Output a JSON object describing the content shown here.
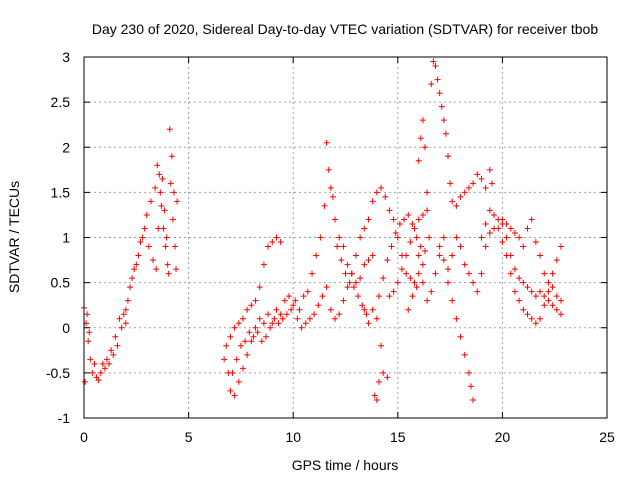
{
  "chart_data": {
    "type": "scatter",
    "title": "Day 230 of 2020, Sidereal Day-to-day VTEC variation (SDTVAR) for receiver tbob",
    "xlabel": "GPS time / hours",
    "ylabel": "SDTVAR / TECUs",
    "xlim": [
      0,
      25
    ],
    "ylim": [
      -1,
      3
    ],
    "xticks": [
      "0",
      "5",
      "10",
      "15",
      "20",
      "25"
    ],
    "yticks": [
      "-1",
      "-0.5",
      "0",
      "0.5",
      "1",
      "1.5",
      "2",
      "2.5",
      "3"
    ],
    "grid": true,
    "marker": "+",
    "color": "#ff0000",
    "series": [
      {
        "name": "SDTVAR",
        "points": [
          [
            0.0,
            0.22
          ],
          [
            0.1,
            0.05
          ],
          [
            0.2,
            -0.15
          ],
          [
            0.3,
            -0.35
          ],
          [
            0.4,
            -0.5
          ],
          [
            0.6,
            -0.55
          ],
          [
            0.8,
            -0.5
          ],
          [
            1.0,
            -0.45
          ],
          [
            1.2,
            -0.4
          ],
          [
            1.4,
            -0.3
          ],
          [
            1.6,
            -0.2
          ],
          [
            1.8,
            0.0
          ],
          [
            2.0,
            0.2
          ],
          [
            2.2,
            0.45
          ],
          [
            2.4,
            0.65
          ],
          [
            2.6,
            0.8
          ],
          [
            2.8,
            1.0
          ],
          [
            3.0,
            1.25
          ],
          [
            3.2,
            1.4
          ],
          [
            3.4,
            1.55
          ],
          [
            3.5,
            1.8
          ],
          [
            3.6,
            1.7
          ],
          [
            3.7,
            1.35
          ],
          [
            3.8,
            1.1
          ],
          [
            3.9,
            0.9
          ],
          [
            4.0,
            0.7
          ],
          [
            4.1,
            2.2
          ],
          [
            4.2,
            1.9
          ],
          [
            4.3,
            1.5
          ],
          [
            4.4,
            0.65
          ],
          [
            0.05,
            -0.6
          ],
          [
            0.15,
            0.15
          ],
          [
            0.25,
            -0.05
          ],
          [
            0.5,
            -0.4
          ],
          [
            0.7,
            -0.58
          ],
          [
            0.9,
            -0.4
          ],
          [
            1.1,
            -0.35
          ],
          [
            1.3,
            -0.25
          ],
          [
            1.5,
            -0.1
          ],
          [
            1.7,
            0.1
          ],
          [
            1.9,
            0.15
          ],
          [
            2.1,
            0.3
          ],
          [
            2.3,
            0.55
          ],
          [
            2.5,
            0.7
          ],
          [
            2.7,
            0.95
          ],
          [
            2.9,
            1.1
          ],
          [
            3.1,
            0.9
          ],
          [
            3.3,
            0.75
          ],
          [
            3.45,
            0.65
          ],
          [
            3.55,
            1.1
          ],
          [
            3.65,
            1.5
          ],
          [
            3.75,
            1.65
          ],
          [
            3.85,
            1.3
          ],
          [
            3.95,
            1.0
          ],
          [
            4.05,
            0.6
          ],
          [
            4.15,
            1.6
          ],
          [
            4.25,
            1.2
          ],
          [
            4.35,
            0.9
          ],
          [
            4.45,
            1.4
          ],
          [
            2.0,
            0.05
          ],
          [
            6.7,
            -0.35
          ],
          [
            6.8,
            -0.2
          ],
          [
            6.9,
            -0.5
          ],
          [
            7.0,
            -0.7
          ],
          [
            7.2,
            -0.75
          ],
          [
            7.4,
            -0.6
          ],
          [
            7.6,
            -0.45
          ],
          [
            7.8,
            -0.3
          ],
          [
            8.0,
            -0.15
          ],
          [
            8.2,
            0.0
          ],
          [
            8.4,
            0.1
          ],
          [
            8.6,
            0.05
          ],
          [
            8.8,
            0.15
          ],
          [
            9.0,
            0.05
          ],
          [
            9.2,
            0.2
          ],
          [
            9.4,
            0.15
          ],
          [
            9.6,
            0.3
          ],
          [
            9.8,
            0.35
          ],
          [
            10.0,
            0.25
          ],
          [
            10.2,
            0.1
          ],
          [
            7.0,
            -0.1
          ],
          [
            7.2,
            0.0
          ],
          [
            7.4,
            0.05
          ],
          [
            7.6,
            0.1
          ],
          [
            7.8,
            0.2
          ],
          [
            8.0,
            0.25
          ],
          [
            8.2,
            0.3
          ],
          [
            8.4,
            0.45
          ],
          [
            8.6,
            0.7
          ],
          [
            8.8,
            0.9
          ],
          [
            9.0,
            0.95
          ],
          [
            9.2,
            1.0
          ],
          [
            9.4,
            0.95
          ],
          [
            7.1,
            -0.5
          ],
          [
            7.3,
            -0.35
          ],
          [
            7.5,
            -0.2
          ],
          [
            7.7,
            -0.15
          ],
          [
            7.9,
            -0.05
          ],
          [
            8.1,
            -0.1
          ],
          [
            8.3,
            -0.05
          ],
          [
            8.5,
            -0.15
          ],
          [
            8.7,
            -0.1
          ],
          [
            8.9,
            0.0
          ],
          [
            9.1,
            0.1
          ],
          [
            9.3,
            0.05
          ],
          [
            9.5,
            0.1
          ],
          [
            9.7,
            0.15
          ],
          [
            9.9,
            0.2
          ],
          [
            10.1,
            0.3
          ],
          [
            10.3,
            0.2
          ],
          [
            10.5,
            0.35
          ],
          [
            10.7,
            0.4
          ],
          [
            10.9,
            0.6
          ],
          [
            11.1,
            0.8
          ],
          [
            11.3,
            1.0
          ],
          [
            11.5,
            1.35
          ],
          [
            11.6,
            2.05
          ],
          [
            11.7,
            1.75
          ],
          [
            11.8,
            1.55
          ],
          [
            11.9,
            1.45
          ],
          [
            12.0,
            1.2
          ],
          [
            12.2,
            1.0
          ],
          [
            12.4,
            0.9
          ],
          [
            12.6,
            0.7
          ],
          [
            12.8,
            0.6
          ],
          [
            13.0,
            0.5
          ],
          [
            13.2,
            0.55
          ],
          [
            13.4,
            0.7
          ],
          [
            13.6,
            0.75
          ],
          [
            13.8,
            0.8
          ],
          [
            10.4,
            0.0
          ],
          [
            10.6,
            0.05
          ],
          [
            10.8,
            0.1
          ],
          [
            11.0,
            0.15
          ],
          [
            11.2,
            0.25
          ],
          [
            11.4,
            0.35
          ],
          [
            11.6,
            0.45
          ],
          [
            11.8,
            0.2
          ],
          [
            12.0,
            0.1
          ],
          [
            12.2,
            0.15
          ],
          [
            12.4,
            0.3
          ],
          [
            12.6,
            0.45
          ],
          [
            12.8,
            0.6
          ],
          [
            13.0,
            0.8
          ],
          [
            13.2,
            1.0
          ],
          [
            13.4,
            1.1
          ],
          [
            13.6,
            1.2
          ],
          [
            13.8,
            1.4
          ],
          [
            14.0,
            1.5
          ],
          [
            14.2,
            1.55
          ],
          [
            14.4,
            1.45
          ],
          [
            14.6,
            1.3
          ],
          [
            14.8,
            1.2
          ],
          [
            15.0,
            1.0
          ],
          [
            15.2,
            0.8
          ],
          [
            15.4,
            0.6
          ],
          [
            15.6,
            0.55
          ],
          [
            15.8,
            0.5
          ],
          [
            16.0,
            0.6
          ],
          [
            16.2,
            0.7
          ],
          [
            13.9,
            -0.75
          ],
          [
            14.0,
            -0.8
          ],
          [
            14.1,
            -0.6
          ],
          [
            14.3,
            -0.5
          ],
          [
            14.5,
            -0.55
          ],
          [
            14.2,
            -0.2
          ],
          [
            14.0,
            0.1
          ],
          [
            13.8,
            0.2
          ],
          [
            13.6,
            0.05
          ],
          [
            13.4,
            0.2
          ],
          [
            14.6,
            0.35
          ],
          [
            14.8,
            0.4
          ],
          [
            15.0,
            0.5
          ],
          [
            15.2,
            0.65
          ],
          [
            15.4,
            0.8
          ],
          [
            15.6,
            0.95
          ],
          [
            15.8,
            1.1
          ],
          [
            16.0,
            1.2
          ],
          [
            16.2,
            1.25
          ],
          [
            16.4,
            1.3
          ],
          [
            16.0,
            1.85
          ],
          [
            16.1,
            2.1
          ],
          [
            16.2,
            2.3
          ],
          [
            16.3,
            2.0
          ],
          [
            16.4,
            1.5
          ],
          [
            16.5,
            1.0
          ],
          [
            16.6,
            2.7
          ],
          [
            16.7,
            2.95
          ],
          [
            16.8,
            2.9
          ],
          [
            16.9,
            2.75
          ],
          [
            17.0,
            2.6
          ],
          [
            17.1,
            2.45
          ],
          [
            17.2,
            2.3
          ],
          [
            17.3,
            2.15
          ],
          [
            17.4,
            1.9
          ],
          [
            17.5,
            1.6
          ],
          [
            17.6,
            1.4
          ],
          [
            17.8,
            1.35
          ],
          [
            18.0,
            1.45
          ],
          [
            18.2,
            1.5
          ],
          [
            18.4,
            1.55
          ],
          [
            18.6,
            1.6
          ],
          [
            18.8,
            1.7
          ],
          [
            19.0,
            1.65
          ],
          [
            19.2,
            1.55
          ],
          [
            19.4,
            1.75
          ],
          [
            19.5,
            1.6
          ],
          [
            16.0,
            0.8
          ],
          [
            16.2,
            0.5
          ],
          [
            16.4,
            0.3
          ],
          [
            16.6,
            0.4
          ],
          [
            16.8,
            0.6
          ],
          [
            17.0,
            0.8
          ],
          [
            17.2,
            1.0
          ],
          [
            17.4,
            0.5
          ],
          [
            17.6,
            0.3
          ],
          [
            17.8,
            0.1
          ],
          [
            18.0,
            -0.1
          ],
          [
            18.2,
            -0.3
          ],
          [
            18.4,
            -0.5
          ],
          [
            18.5,
            -0.65
          ],
          [
            18.6,
            -0.8
          ],
          [
            17.0,
            0.9
          ],
          [
            17.2,
            0.75
          ],
          [
            17.4,
            0.65
          ],
          [
            17.6,
            0.8
          ],
          [
            17.8,
            1.0
          ],
          [
            18.0,
            0.9
          ],
          [
            18.2,
            0.7
          ],
          [
            18.4,
            0.6
          ],
          [
            18.6,
            0.5
          ],
          [
            18.8,
            0.4
          ],
          [
            19.0,
            0.6
          ],
          [
            19.2,
            0.9
          ],
          [
            19.4,
            1.05
          ],
          [
            19.6,
            1.1
          ],
          [
            19.8,
            1.2
          ],
          [
            20.0,
            1.15
          ],
          [
            20.2,
            1.0
          ],
          [
            20.4,
            0.8
          ],
          [
            20.6,
            0.65
          ],
          [
            20.8,
            0.55
          ],
          [
            21.0,
            0.5
          ],
          [
            21.2,
            0.45
          ],
          [
            21.4,
            0.4
          ],
          [
            21.6,
            0.35
          ],
          [
            21.8,
            0.4
          ],
          [
            22.0,
            0.35
          ],
          [
            22.2,
            0.3
          ],
          [
            22.4,
            0.25
          ],
          [
            22.6,
            0.2
          ],
          [
            22.8,
            0.15
          ],
          [
            19.0,
            1.0
          ],
          [
            19.2,
            1.15
          ],
          [
            19.4,
            1.3
          ],
          [
            19.6,
            1.25
          ],
          [
            19.8,
            1.1
          ],
          [
            20.0,
            0.95
          ],
          [
            20.2,
            0.8
          ],
          [
            20.4,
            0.6
          ],
          [
            20.6,
            0.4
          ],
          [
            20.8,
            0.3
          ],
          [
            21.0,
            0.2
          ],
          [
            21.2,
            0.15
          ],
          [
            21.4,
            0.1
          ],
          [
            21.6,
            0.05
          ],
          [
            21.8,
            0.1
          ],
          [
            22.0,
            0.25
          ],
          [
            22.2,
            0.4
          ],
          [
            22.4,
            0.6
          ],
          [
            22.6,
            0.75
          ],
          [
            22.8,
            0.9
          ],
          [
            20.0,
            1.2
          ],
          [
            20.2,
            1.15
          ],
          [
            20.4,
            1.1
          ],
          [
            20.6,
            1.05
          ],
          [
            20.8,
            1.0
          ],
          [
            21.0,
            0.9
          ],
          [
            21.2,
            1.1
          ],
          [
            21.4,
            1.2
          ],
          [
            21.6,
            0.95
          ],
          [
            21.8,
            0.8
          ],
          [
            22.0,
            0.6
          ],
          [
            22.2,
            0.5
          ],
          [
            22.4,
            0.45
          ],
          [
            22.6,
            0.35
          ],
          [
            22.8,
            0.3
          ],
          [
            15.5,
            0.2
          ],
          [
            15.7,
            0.35
          ],
          [
            15.9,
            0.45
          ],
          [
            12.1,
            0.9
          ],
          [
            12.3,
            0.75
          ],
          [
            12.5,
            0.6
          ],
          [
            12.7,
            0.5
          ],
          [
            12.9,
            0.45
          ],
          [
            13.1,
            0.35
          ],
          [
            13.3,
            0.25
          ],
          [
            13.5,
            0.15
          ],
          [
            14.1,
            0.35
          ],
          [
            14.3,
            0.55
          ],
          [
            14.5,
            0.75
          ],
          [
            14.7,
            0.9
          ],
          [
            14.9,
            1.05
          ],
          [
            15.1,
            1.15
          ],
          [
            15.3,
            1.2
          ],
          [
            15.5,
            1.25
          ],
          [
            15.7,
            1.15
          ],
          [
            15.9,
            1.0
          ],
          [
            16.1,
            0.9
          ],
          [
            16.3,
            0.85
          ]
        ]
      }
    ]
  }
}
